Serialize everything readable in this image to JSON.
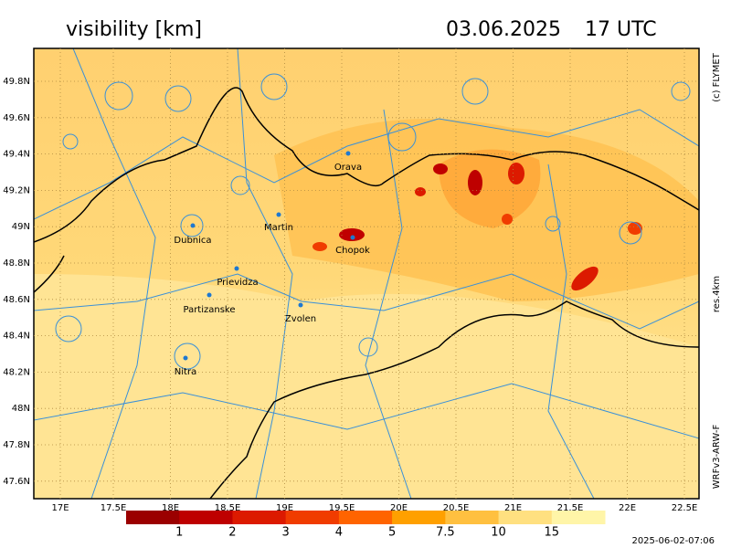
{
  "header": {
    "title": "visibility [km]",
    "date": "03.06.2025",
    "time": "17 UTC"
  },
  "side_labels": {
    "credit": "(c) FLYMET",
    "resolution": "res.4km",
    "model": "WRFv3-ARW-F"
  },
  "timestamp": "2025-06-02-07:06",
  "map": {
    "lat_ticks": [
      "49.8N",
      "49.6N",
      "49.4N",
      "49.2N",
      "49N",
      "48.8N",
      "48.6N",
      "48.4N",
      "48.2N",
      "48N",
      "47.8N",
      "47.6N"
    ],
    "lon_ticks": [
      "17E",
      "17.5E",
      "18E",
      "18.5E",
      "19E",
      "19.5E",
      "20E",
      "20.5E",
      "21E",
      "21.5E",
      "22E",
      "22.5E"
    ],
    "cities": [
      "Orava",
      "Martin",
      "Dubnica",
      "Chopok",
      "Prievidza",
      "Partizanske",
      "Zvolen",
      "Nitra"
    ]
  },
  "colorbar": {
    "colors": [
      "#9b0000",
      "#be0000",
      "#dc1a00",
      "#f03c00",
      "#ff6400",
      "#ffa000",
      "#ffc040",
      "#ffe080",
      "#fff5a8"
    ],
    "labels": [
      "1",
      "2",
      "3",
      "4",
      "5",
      "7.5",
      "10",
      "15"
    ]
  }
}
